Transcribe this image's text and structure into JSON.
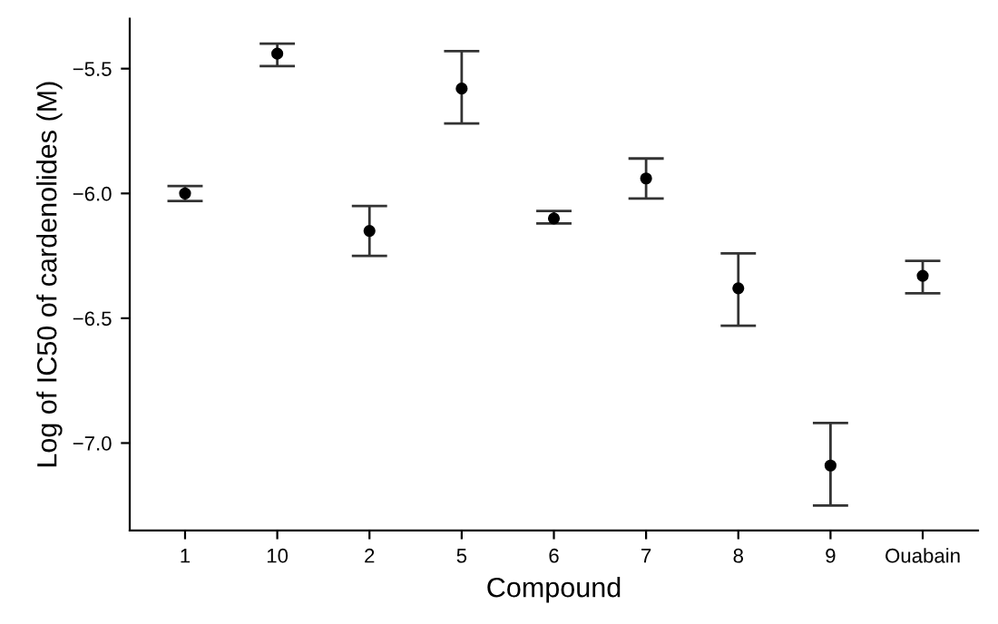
{
  "chart_data": {
    "type": "scatter",
    "xlabel": "Compound",
    "ylabel": "Log of IC50 of cardenolides (M)",
    "categories": [
      "1",
      "10",
      "2",
      "5",
      "6",
      "7",
      "8",
      "9",
      "Ouabain"
    ],
    "values": [
      -6.0,
      -5.44,
      -6.15,
      -5.58,
      -6.1,
      -5.94,
      -6.38,
      -7.09,
      -6.33
    ],
    "errors": [
      [
        -6.03,
        -5.97
      ],
      [
        -5.49,
        -5.4
      ],
      [
        -6.25,
        -6.05
      ],
      [
        -5.72,
        -5.43
      ],
      [
        -6.12,
        -6.07
      ],
      [
        -6.02,
        -5.86
      ],
      [
        -6.53,
        -6.24
      ],
      [
        -7.25,
        -6.92
      ],
      [
        -6.4,
        -6.27
      ]
    ],
    "color": "#000000",
    "marker": "circle",
    "grid": false,
    "legend": false,
    "ylim": [
      -7.35,
      -5.3
    ],
    "yticks": [
      {
        "value": -7.0,
        "label": "−7.0"
      },
      {
        "value": -6.5,
        "label": "−6.5"
      },
      {
        "value": -6.0,
        "label": "−6.0"
      },
      {
        "value": -5.5,
        "label": "−5.5"
      }
    ]
  }
}
